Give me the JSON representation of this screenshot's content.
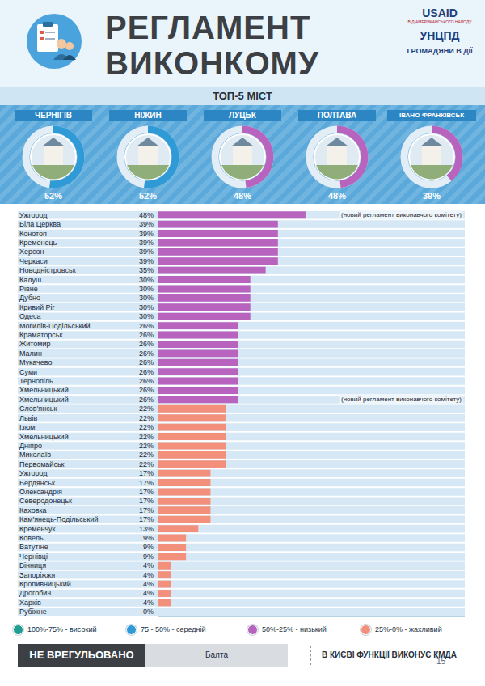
{
  "header": {
    "title_lines": [
      "РЕГЛАМЕНТ",
      "ВИКОНКОМУ"
    ],
    "logos": [
      {
        "text": "USAID",
        "sub": "ВІД АМЕРИКАНСЬКОГО НАРОДУ"
      },
      {
        "text": "УНЦПД"
      },
      {
        "text": "ГРОМАДЯНИ В ДІЇ"
      }
    ]
  },
  "top5": {
    "title": "ТОП-5 МІСТ",
    "items": [
      {
        "name": "ЧЕРНІГІВ",
        "value": 52,
        "value_label": "52%",
        "color": "#2f9ad6"
      },
      {
        "name": "НІЖИН",
        "value": 52,
        "value_label": "52%",
        "color": "#2f9ad6"
      },
      {
        "name": "ЛУЦЬК",
        "value": 48,
        "value_label": "48%",
        "color": "#b864be"
      },
      {
        "name": "ПОЛТАВА",
        "value": 48,
        "value_label": "48%",
        "color": "#b864be"
      },
      {
        "name": "ІВАНО-ФРАНКІВСЬК",
        "value": 39,
        "value_label": "39%",
        "color": "#b864be"
      }
    ]
  },
  "chart_data": {
    "type": "bar",
    "orientation": "horizontal",
    "categories": [
      "Ужгород",
      "Біла Церква",
      "Конотоп",
      "Кременець",
      "Херсон",
      "Черкаси",
      "Новодністровськ",
      "Калуш",
      "Рівне",
      "Дубно",
      "Кривий Ріг",
      "Одеса",
      "Могилів-Подільський",
      "Краматорськ",
      "Житомир",
      "Малин",
      "Мукачево",
      "Суми",
      "Тернопіль",
      "Хмельницький",
      "Хмельницький",
      "Слов'янськ",
      "Львів",
      "Ізюм",
      "Хмельницький",
      "Дніпро",
      "Миколаїв",
      "Первомайськ",
      "Ужгород",
      "Бердянськ",
      "Олександрія",
      "Северодонецьк",
      "Каховка",
      "Кам'янець-Подільський",
      "Кременчук",
      "Ковель",
      "Ватутіне",
      "Чернівці",
      "Вінниця",
      "Запоріжжя",
      "Кропивницький",
      "Дрогобич",
      "Харків",
      "Рубіжне"
    ],
    "values": [
      48,
      39,
      39,
      39,
      39,
      39,
      35,
      30,
      30,
      30,
      30,
      30,
      26,
      26,
      26,
      26,
      26,
      26,
      26,
      26,
      26,
      22,
      22,
      22,
      22,
      22,
      22,
      22,
      17,
      17,
      17,
      17,
      17,
      17,
      13,
      9,
      9,
      9,
      4,
      4,
      4,
      4,
      4,
      0
    ],
    "value_labels": [
      "48%",
      "39%",
      "39%",
      "39%",
      "39%",
      "39%",
      "35%",
      "30%",
      "30%",
      "30%",
      "30%",
      "30%",
      "26%",
      "26%",
      "26%",
      "26%",
      "26%",
      "26%",
      "26%",
      "26%",
      "26%",
      "22%",
      "22%",
      "22%",
      "22%",
      "22%",
      "22%",
      "22%",
      "17%",
      "17%",
      "17%",
      "17%",
      "17%",
      "17%",
      "13%",
      "9%",
      "9%",
      "9%",
      "4%",
      "4%",
      "4%",
      "4%",
      "4%",
      "0%"
    ],
    "colors": [
      "#b864be",
      "#b864be",
      "#b864be",
      "#b864be",
      "#b864be",
      "#b864be",
      "#b864be",
      "#b864be",
      "#b864be",
      "#b864be",
      "#b864be",
      "#b864be",
      "#b864be",
      "#b864be",
      "#b864be",
      "#b864be",
      "#b864be",
      "#b864be",
      "#b864be",
      "#b864be",
      "#b864be",
      "#f3907c",
      "#f3907c",
      "#f3907c",
      "#f3907c",
      "#f3907c",
      "#f3907c",
      "#f3907c",
      "#f3907c",
      "#f3907c",
      "#f3907c",
      "#f3907c",
      "#f3907c",
      "#f3907c",
      "#f3907c",
      "#f3907c",
      "#f3907c",
      "#f3907c",
      "#f3907c",
      "#f3907c",
      "#f3907c",
      "#f3907c",
      "#f3907c",
      "#f3907c"
    ],
    "xlim": [
      0,
      100
    ],
    "xticks": [],
    "grid": false,
    "tick_labels": "y",
    "data_labels": true,
    "annotations": [
      {
        "row": 0,
        "text": "(новий регламент виконавчого комітету)"
      },
      {
        "row": 20,
        "text": "(новий регламент виконавчого комітету)"
      }
    ]
  },
  "scale": [
    {
      "label": "100%-75% - високий",
      "color": "#1e9e8f"
    },
    {
      "label": "75 - 50% - середній",
      "color": "#2f9ad6"
    },
    {
      "label": "50%-25% - низький",
      "color": "#b864be"
    },
    {
      "label": "25%-0% - жахливий",
      "color": "#f3907c"
    }
  ],
  "footer": {
    "unregulated_label": "НЕ ВРЕГУЛЬОВАНО",
    "unregulated": "Балта",
    "note": "В КИЄВІ ФУНКЦІЇ ВИКОНУЄ КМДА",
    "page": 15
  }
}
